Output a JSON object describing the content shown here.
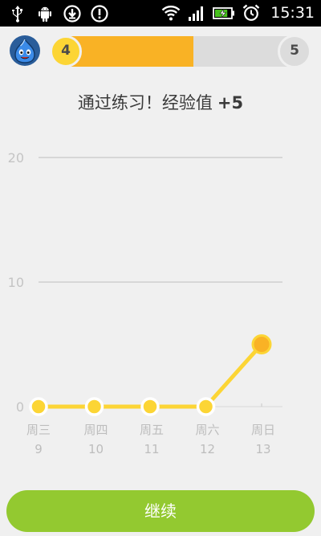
{
  "status_bar": {
    "time": "15:31",
    "left_icons": [
      "usb-icon",
      "android-debug-icon",
      "download-icon",
      "alert-icon"
    ],
    "right_icons": [
      "wifi-icon",
      "signal-icon",
      "battery-charging-icon",
      "alarm-icon"
    ],
    "battery_level": 0.8
  },
  "progress": {
    "current_level": "4",
    "next_level": "5",
    "fraction": 0.55,
    "fill_color": "#f9b225",
    "current_badge_color": "#fcd535"
  },
  "title": {
    "text": "通过练习！经验值",
    "xp_gain": "+5"
  },
  "chart_data": {
    "type": "line",
    "categories": [
      "周三",
      "周四",
      "周五",
      "周六",
      "周日"
    ],
    "dates": [
      "9",
      "10",
      "11",
      "12",
      "13"
    ],
    "series": [
      {
        "values": [
          0,
          0,
          0,
          0,
          5
        ]
      }
    ],
    "ylim": [
      0,
      20
    ],
    "y_ticks": [
      "0",
      "10",
      "20"
    ],
    "grid": true,
    "line_color": "#fcd535",
    "highlight_color": "#f9b225"
  },
  "continue_button": {
    "label": "继续",
    "color": "#93c930"
  }
}
